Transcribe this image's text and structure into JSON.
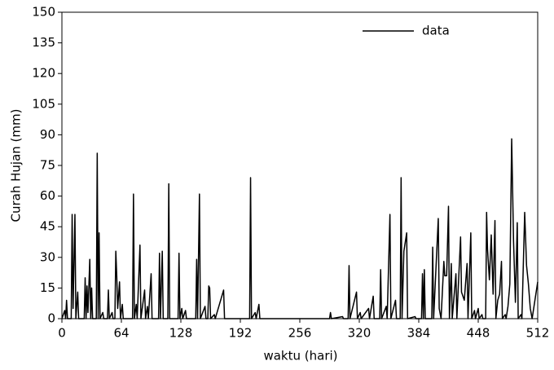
{
  "chart_data": {
    "type": "line",
    "xlabel": "waktu (hari)",
    "ylabel": "Curah Hujan (mm)",
    "x": [
      0,
      3,
      4,
      5,
      6,
      10,
      11,
      12,
      14,
      15,
      17,
      18,
      24,
      25,
      26,
      27,
      28,
      30,
      31,
      32,
      33,
      37,
      38,
      39,
      40,
      41,
      44,
      45,
      49,
      50,
      51,
      54,
      55,
      57,
      58,
      59,
      60,
      62,
      63,
      65,
      66,
      76,
      77,
      78,
      80,
      81,
      84,
      85,
      89,
      90,
      92,
      93,
      96,
      97,
      104,
      105,
      106,
      108,
      109,
      114,
      115,
      116,
      125,
      126,
      127,
      129,
      130,
      133,
      134,
      144,
      145,
      146,
      148,
      149,
      154,
      155,
      157,
      158,
      159,
      160,
      164,
      165,
      174,
      175,
      202,
      203,
      204,
      208,
      209,
      212,
      213,
      288,
      289,
      290,
      302,
      303,
      308,
      309,
      310,
      317,
      318,
      321,
      322,
      330,
      331,
      335,
      336,
      342,
      343,
      344,
      349,
      350,
      353,
      354,
      359,
      360,
      364,
      365,
      366,
      368,
      371,
      372,
      380,
      381,
      387,
      388,
      389,
      390,
      391,
      398,
      399,
      400,
      405,
      406,
      408,
      411,
      412,
      414,
      416,
      417,
      419,
      420,
      424,
      425,
      429,
      430,
      433,
      436,
      437,
      440,
      441,
      444,
      445,
      448,
      449,
      452,
      453,
      456,
      457,
      458,
      460,
      462,
      464,
      466,
      467,
      469,
      471,
      473,
      474,
      477,
      478,
      480,
      482,
      484,
      486,
      488,
      490,
      491,
      494,
      495,
      498,
      500,
      502,
      504,
      506,
      512
    ],
    "series": [
      {
        "name": "data",
        "color": "#000000",
        "values": [
          0,
          4,
          0,
          9,
          0,
          0,
          51,
          5,
          51,
          0,
          13,
          0,
          0,
          20,
          0,
          16,
          3,
          29,
          0,
          15,
          0,
          0,
          81,
          0,
          42,
          0,
          3,
          0,
          0,
          14,
          0,
          3,
          0,
          0,
          33,
          21,
          5,
          18,
          0,
          7,
          0,
          0,
          61,
          0,
          7,
          0,
          36,
          0,
          14,
          0,
          6,
          0,
          22,
          0,
          0,
          32,
          0,
          33,
          0,
          0,
          66,
          0,
          0,
          32,
          0,
          5,
          0,
          4,
          0,
          0,
          29,
          0,
          61,
          0,
          6,
          0,
          0,
          16,
          15,
          0,
          2,
          0,
          14,
          0,
          0,
          69,
          0,
          3,
          0,
          7,
          0,
          0,
          3,
          0,
          1,
          0,
          0,
          26,
          0,
          13,
          0,
          3,
          0,
          5,
          0,
          11,
          0,
          0,
          24,
          0,
          6,
          0,
          51,
          0,
          9,
          0,
          0,
          69,
          0,
          33,
          42,
          0,
          1,
          0,
          0,
          22,
          0,
          24,
          0,
          0,
          35,
          0,
          49,
          5,
          0,
          28,
          21,
          21,
          55,
          0,
          27,
          0,
          22,
          0,
          40,
          13,
          9,
          27,
          0,
          42,
          0,
          4,
          0,
          5,
          0,
          2,
          0,
          0,
          52,
          34,
          19,
          41,
          12,
          48,
          0,
          9,
          12,
          28,
          0,
          2,
          0,
          6,
          17,
          88,
          38,
          8,
          47,
          0,
          2,
          0,
          52,
          26,
          17,
          5,
          0,
          18
        ]
      }
    ],
    "xlim": [
      0,
      512
    ],
    "xticks": [
      0,
      64,
      128,
      192,
      256,
      320,
      384,
      448,
      512
    ],
    "ylim": [
      0,
      150
    ],
    "yticks": [
      0,
      15,
      30,
      45,
      60,
      75,
      90,
      105,
      120,
      135,
      150
    ],
    "legend": "upper right"
  }
}
